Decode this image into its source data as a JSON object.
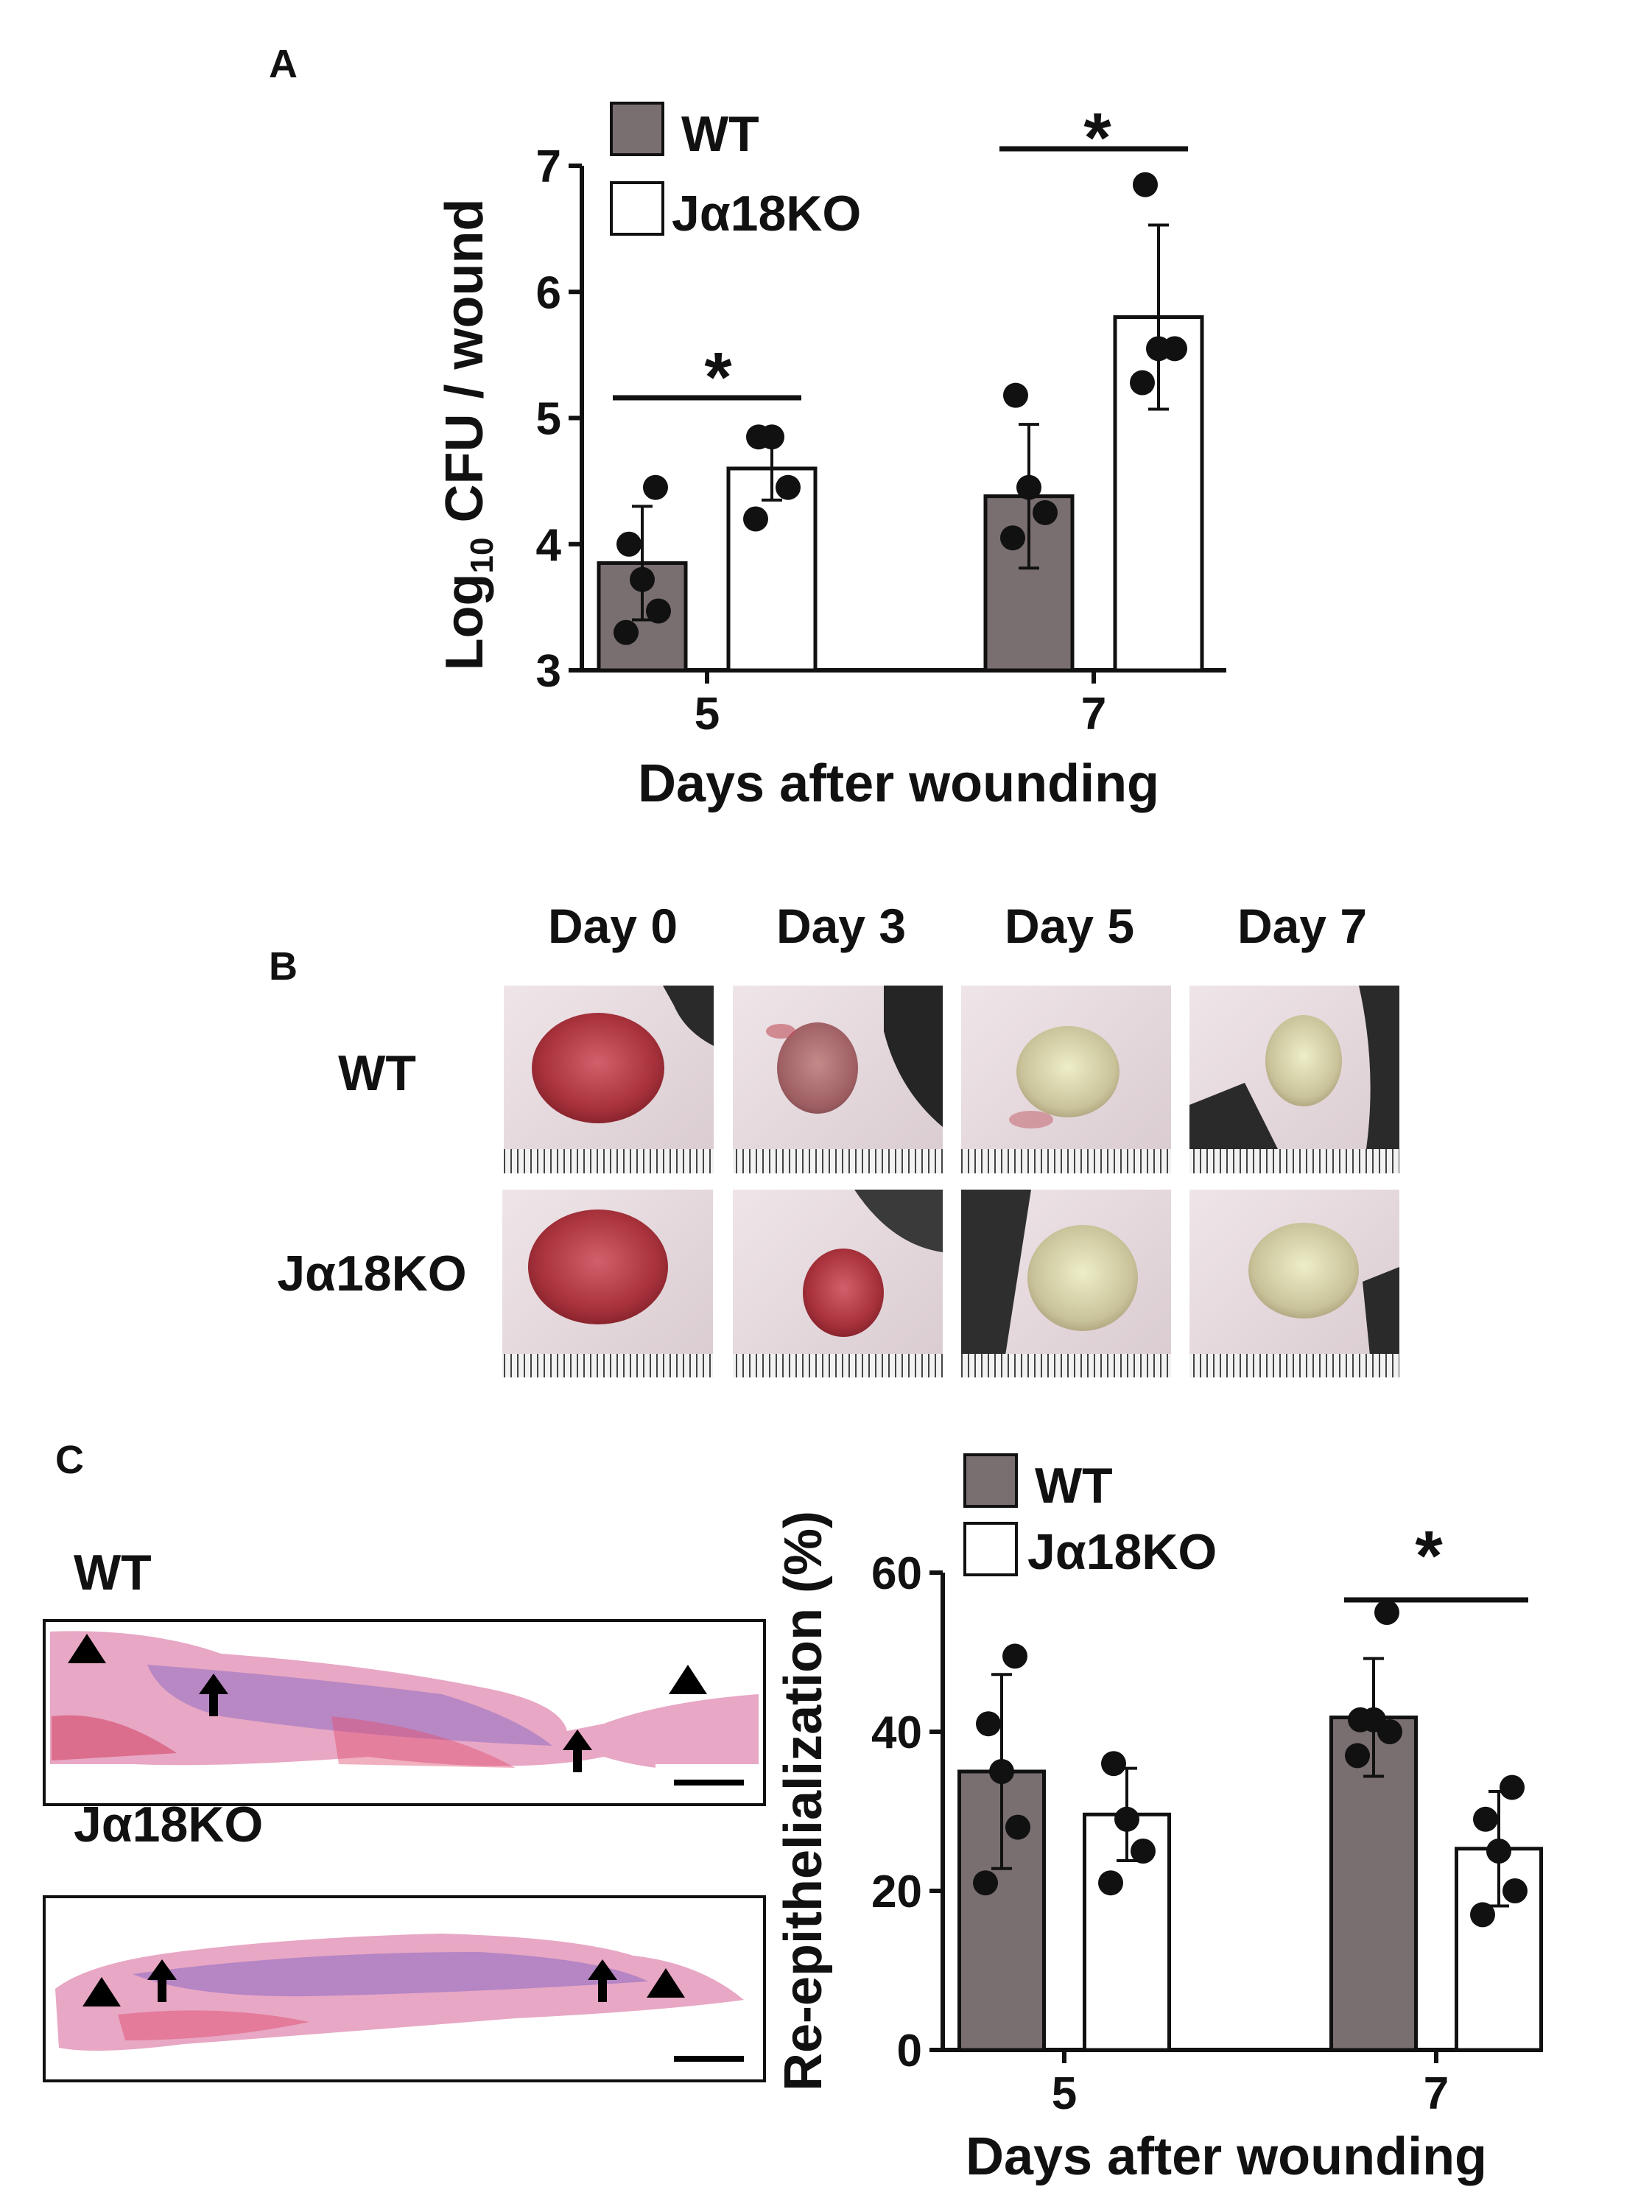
{
  "colors": {
    "wt": "#7a6f70",
    "ko": "#ffffff",
    "ink": "#111111",
    "skin": "#e6d8dc",
    "wound": "#b5333d",
    "histo_pink": "#e8a7c4",
    "histo_purple": "#a47ac4"
  },
  "panelA": {
    "letter": "A",
    "legend": {
      "wt": "WT",
      "ko": "Jα18KO"
    },
    "star": "*",
    "chart_data": {
      "type": "bar",
      "title": "",
      "ylabel": "Log10 CFU / wound",
      "ylabel_parts": {
        "main": "Log",
        "sub": "10",
        "rest": " CFU / wound"
      },
      "xlabel": "Days after wounding",
      "categories": [
        "5",
        "7"
      ],
      "ylim": [
        3,
        7
      ],
      "yticks": [
        "3",
        "4",
        "5",
        "6",
        "7"
      ],
      "series": [
        {
          "name": "WT",
          "values": [
            3.85,
            4.38
          ],
          "sd": [
            0.45,
            0.57
          ],
          "points": [
            [
              3.3,
              3.47,
              3.72,
              4.0,
              4.45
            ],
            [
              4.05,
              4.25,
              4.45,
              5.18
            ]
          ]
        },
        {
          "name": "Jα18KO",
          "values": [
            4.6,
            5.8
          ],
          "sd": [
            0.25,
            0.73
          ],
          "points": [
            [
              4.2,
              4.45,
              4.85,
              4.85
            ],
            [
              5.28,
              5.55,
              5.55,
              6.85
            ]
          ]
        }
      ],
      "significance": [
        "*",
        "*"
      ]
    }
  },
  "panelB": {
    "letter": "B",
    "days": [
      "Day 0",
      "Day 3",
      "Day 5",
      "Day 7"
    ],
    "rows": [
      "WT",
      "Jα18KO"
    ]
  },
  "panelC": {
    "letter": "C",
    "sections": [
      "WT",
      "Jα18KO"
    ],
    "legend": {
      "wt": "WT",
      "ko": "Jα18KO"
    },
    "star": "*",
    "chart_data": {
      "type": "bar",
      "title": "",
      "ylabel": "Re-epithelialization (%)",
      "xlabel": "Days after wounding",
      "categories": [
        "5",
        "7"
      ],
      "ylim": [
        0,
        60
      ],
      "yticks": [
        "0",
        "20",
        "40",
        "60"
      ],
      "series": [
        {
          "name": "WT",
          "values": [
            35,
            41.8
          ],
          "sd": [
            12.2,
            7.4
          ],
          "points": [
            [
              21,
              28,
              35,
              41,
              49.5
            ],
            [
              37,
              40,
              41.5,
              41.5,
              55
            ]
          ]
        },
        {
          "name": "Jα18KO",
          "values": [
            29.6,
            25.3
          ],
          "sd": [
            5.8,
            7.2
          ],
          "points": [
            [
              21,
              25,
              29,
              36
            ],
            [
              17,
              20,
              25,
              29,
              33
            ]
          ]
        }
      ],
      "significance": [
        "",
        "*"
      ]
    }
  }
}
